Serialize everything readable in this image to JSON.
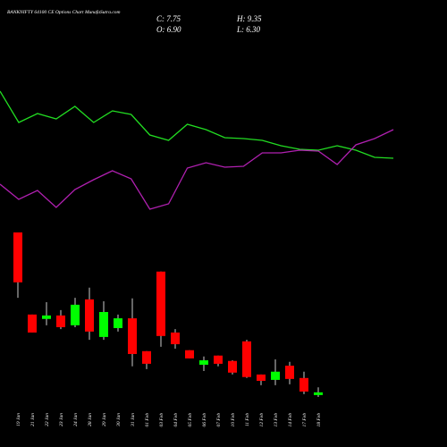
{
  "chart_data": {
    "type": "candlestick",
    "title": "BANKNIFTY 64100 CE Options Chart MunafaSutra.com",
    "close_text": "C: 7.75",
    "high_text": "H: 9.35",
    "open_text": "O: 6.90",
    "low_text": "L: 6.30",
    "categories": [
      "19 Jan",
      "21 Jan",
      "22 Jan",
      "23 Jan",
      "24 Jan",
      "28 Jan",
      "29 Jan",
      "30 Jan",
      "31 Jan",
      "01 Feb",
      "03 Feb",
      "04 Feb",
      "05 Feb",
      "06 Feb",
      "07 Feb",
      "10 Feb",
      "11 Feb",
      "12 Feb",
      "13 Feb",
      "14 Feb",
      "17 Feb",
      "18 Feb"
    ],
    "open": [
      58.4,
      32.4,
      31.0,
      32.1,
      29.0,
      37.2,
      25.3,
      28.1,
      31.2,
      20.8,
      46.0,
      26.7,
      21.1,
      16.5,
      19.4,
      17.7,
      23.9,
      13.4,
      11.7,
      16.2,
      12.3,
      6.9
    ],
    "high": [
      58.4,
      32.4,
      36.3,
      33.8,
      37.7,
      40.9,
      36.6,
      32.4,
      37.5,
      20.8,
      46.0,
      27.8,
      21.1,
      19.1,
      19.4,
      17.9,
      24.4,
      13.4,
      18.2,
      17.4,
      14.3,
      9.35
    ],
    "low": [
      37.7,
      26.7,
      29.0,
      27.8,
      28.4,
      24.4,
      24.4,
      27.0,
      16.0,
      15.1,
      22.2,
      21.6,
      18.5,
      14.5,
      16.0,
      13.4,
      12.3,
      10.0,
      10.0,
      10.3,
      7.2,
      6.3
    ],
    "close": [
      42.6,
      26.7,
      32.1,
      28.4,
      35.5,
      27.0,
      33.2,
      31.2,
      19.9,
      16.8,
      25.6,
      23.0,
      18.5,
      17.9,
      16.8,
      14.0,
      12.6,
      11.4,
      14.3,
      12.0,
      8.0,
      7.75
    ],
    "up_color": "#00ff00",
    "down_color": "#ff0000",
    "lines": [
      {
        "color": "#22dd22",
        "values": [
          99,
          81.5,
          86.5,
          83.5,
          90.5,
          81.5,
          88,
          86,
          74.5,
          71.5,
          80.5,
          77.5,
          73,
          72.5,
          71.5,
          68.5,
          66.5,
          66,
          68.5,
          66,
          62,
          61.5
        ]
      },
      {
        "color": "#b020b0",
        "values": [
          47,
          38.5,
          43.5,
          34,
          44,
          49.5,
          54.5,
          50,
          33,
          36,
          56,
          59,
          56.5,
          57,
          64.5,
          64.5,
          66,
          65.5,
          58,
          69,
          72.5,
          77.5
        ]
      }
    ]
  }
}
